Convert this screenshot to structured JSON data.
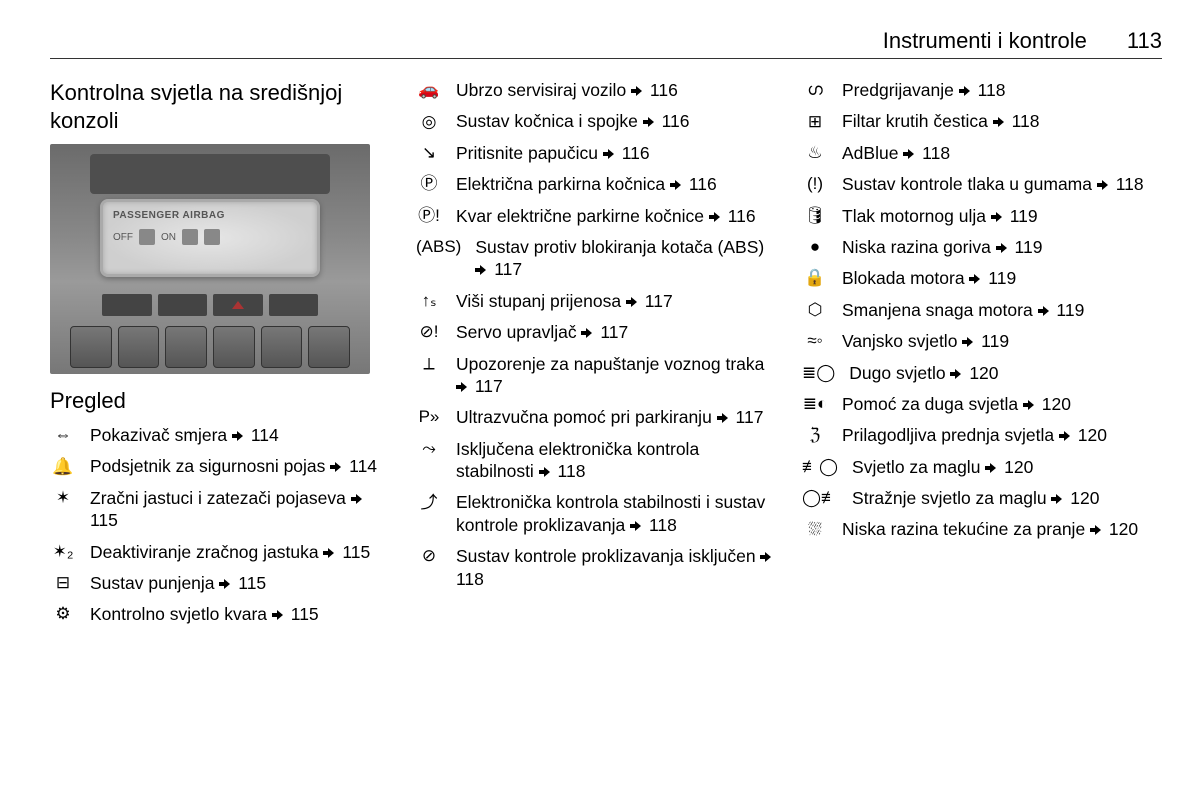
{
  "header": {
    "chapter": "Instrumenti i kontrole",
    "page": "113"
  },
  "col1": {
    "title": "Kontrolna svjetla na središnjoj konzoli",
    "image_display_label": "PASSENGER AIRBAG",
    "image_display_off": "OFF",
    "image_display_on": "ON",
    "subheading": "Pregled",
    "items": [
      {
        "icon": "⇔",
        "text": "Pokazivač smjera",
        "page": "114"
      },
      {
        "icon": "🔔",
        "text": "Podsjetnik za sigurnosni pojas",
        "page": "114"
      },
      {
        "icon": "✶",
        "text": "Zračni jastuci i zatezači pojaseva",
        "page": "115"
      },
      {
        "icon": "✶₂",
        "text": "Deaktiviranje zračnog jastuka",
        "page": "115"
      },
      {
        "icon": "⊟",
        "text": "Sustav punjenja",
        "page": "115"
      },
      {
        "icon": "⚙",
        "text": "Kontrolno svjetlo kvara",
        "page": "115"
      }
    ]
  },
  "col2": {
    "items": [
      {
        "icon": "🚗",
        "text": "Ubrzo servisiraj vozilo",
        "page": "116"
      },
      {
        "icon": "◎",
        "text": "Sustav kočnica i spojke",
        "page": "116"
      },
      {
        "icon": "↘",
        "text": "Pritisnite papučicu",
        "page": "116"
      },
      {
        "icon": "Ⓟ",
        "text": "Električna parkirna kočnica",
        "page": "116"
      },
      {
        "icon": "Ⓟ!",
        "text": "Kvar električne parkirne kočnice",
        "page": "116"
      },
      {
        "icon": "(ABS)",
        "text": "Sustav protiv blokiranja kotača (ABS)",
        "page": "117"
      },
      {
        "icon": "↑ₛ",
        "text": "Viši stupanj prijenosa",
        "page": "117"
      },
      {
        "icon": "⊘!",
        "text": "Servo upravljač",
        "page": "117"
      },
      {
        "icon": "⟂",
        "text": "Upozorenje za napuštanje voznog traka",
        "page": "117"
      },
      {
        "icon": "P»",
        "text": "Ultrazvučna pomoć pri parkiranju",
        "page": "117"
      },
      {
        "icon": "⤳",
        "text": "Isključena elektronička kontrola stabilnosti",
        "page": "118"
      },
      {
        "icon": "⤴",
        "text": "Elektronička kontrola stabilnosti i sustav kontrole proklizavanja",
        "page": "118"
      },
      {
        "icon": "⊘",
        "text": "Sustav kontrole proklizavanja isključen",
        "page": "118"
      }
    ]
  },
  "col3": {
    "items": [
      {
        "icon": "ഗ",
        "text": "Predgrijavanje",
        "page": "118"
      },
      {
        "icon": "⊞",
        "text": "Filtar krutih čestica",
        "page": "118"
      },
      {
        "icon": "♨",
        "text": "AdBlue",
        "page": "118"
      },
      {
        "icon": "(!)",
        "text": "Sustav kontrole tlaka u gumama",
        "page": "118"
      },
      {
        "icon": "🛢",
        "text": "Tlak motornog ulja",
        "page": "119"
      },
      {
        "icon": "●",
        "text": "Niska razina goriva",
        "page": "119"
      },
      {
        "icon": "🔒",
        "text": "Blokada motora",
        "page": "119"
      },
      {
        "icon": "⬡",
        "text": "Smanjena snaga motora",
        "page": "119"
      },
      {
        "icon": "≈◦",
        "text": "Vanjsko svjetlo",
        "page": "119"
      },
      {
        "icon": "≣◯",
        "text": "Dugo svjetlo",
        "page": "120"
      },
      {
        "icon": "≣◐",
        "text": "Pomoć za duga svjetla",
        "page": "120"
      },
      {
        "icon": "ℨ",
        "text": "Prilagodljiva prednja svjetla",
        "page": "120"
      },
      {
        "icon": "≢◯",
        "text": "Svjetlo za maglu",
        "page": "120"
      },
      {
        "icon": "◯≢",
        "text": "Stražnje svjetlo za maglu",
        "page": "120"
      },
      {
        "icon": "⛆",
        "text": "Niska razina tekućine za pranje",
        "page": "120"
      }
    ]
  }
}
